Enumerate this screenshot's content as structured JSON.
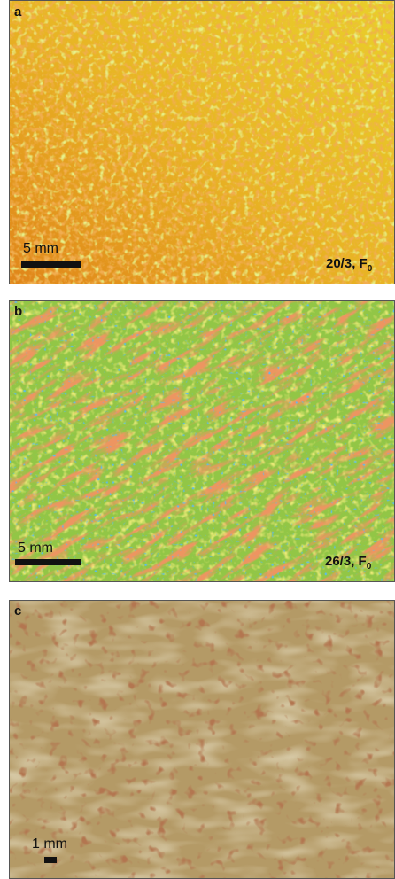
{
  "panels": [
    {
      "label": "a",
      "scale_bar": "5 mm",
      "caption": "20/3, F",
      "caption_subscript": "0"
    },
    {
      "label": "b",
      "scale_bar": "5 mm",
      "caption": "26/3, F",
      "caption_subscript": "0"
    },
    {
      "label": "c",
      "scale_bar": "1 mm"
    }
  ]
}
